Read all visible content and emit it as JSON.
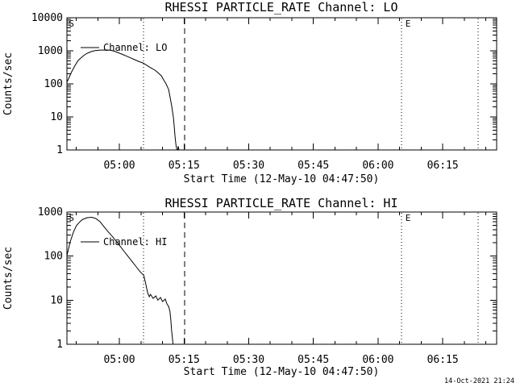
{
  "figure": {
    "background": "#ffffff",
    "foreground": "#000000",
    "timestamp": "14-Oct-2021 21:24"
  },
  "chart_data": [
    {
      "type": "line",
      "title": "RHESSI PARTICLE_RATE Channel: LO",
      "xlabel": "Start Time (12-May-10 04:47:50)",
      "ylabel": "Counts/sec",
      "legend": [
        "Channel: LO"
      ],
      "legend_position": "upper-left",
      "grid": false,
      "x_axis": {
        "start_time": "04:47:50",
        "duration_min": 99.67,
        "major_ticks": [
          {
            "t": 12.1667,
            "label": "05:00"
          },
          {
            "t": 27.1667,
            "label": "05:15"
          },
          {
            "t": 42.1667,
            "label": "05:30"
          },
          {
            "t": 57.1667,
            "label": "05:45"
          },
          {
            "t": 72.1667,
            "label": "06:00"
          },
          {
            "t": 87.1667,
            "label": "06:15"
          }
        ],
        "minor_tick_start": 2.1667,
        "minor_tick_step_min": 5
      },
      "y_axis": {
        "scale": "log",
        "min": 1,
        "max": 10000,
        "tick_labels": [
          "10000",
          "1000",
          "100",
          "10",
          "1"
        ]
      },
      "event_markers": [
        {
          "style": "dotted",
          "t": 17.8,
          "time": "05:05:38"
        },
        {
          "style": "dashed",
          "t": 27.3,
          "time": "05:15:08"
        },
        {
          "style": "dotted",
          "t": 77.6,
          "time": "06:05:26"
        },
        {
          "style": "dotted",
          "t": 95.4,
          "time": "06:23:14"
        }
      ],
      "flags": [
        {
          "label": "S",
          "t": 0.25
        },
        {
          "label": "E",
          "t": 78.3
        }
      ],
      "series": [
        {
          "name": "Channel: LO",
          "points": [
            [
              0,
              112
            ],
            [
              0.6,
              166
            ],
            [
              1.1,
              232
            ],
            [
              1.9,
              363
            ],
            [
              2.6,
              510
            ],
            [
              3.4,
              635
            ],
            [
              4.1,
              755
            ],
            [
              4.9,
              865
            ],
            [
              5.6,
              940
            ],
            [
              6.5,
              1010
            ],
            [
              7.5,
              1045
            ],
            [
              8.8,
              1055
            ],
            [
              10.1,
              1040
            ],
            [
              11.0,
              970
            ],
            [
              12.0,
              865
            ],
            [
              12.9,
              775
            ],
            [
              13.8,
              690
            ],
            [
              14.8,
              610
            ],
            [
              15.7,
              540
            ],
            [
              16.6,
              480
            ],
            [
              17.6,
              430
            ],
            [
              18.5,
              365
            ],
            [
              19.4,
              310
            ],
            [
              20.4,
              260
            ],
            [
              21.1,
              220
            ],
            [
              21.9,
              175
            ],
            [
              22.4,
              135
            ],
            [
              23.0,
              100
            ],
            [
              23.6,
              67
            ],
            [
              23.9,
              41
            ],
            [
              24.3,
              22
            ],
            [
              24.7,
              9.5
            ],
            [
              24.9,
              4.8
            ],
            [
              25.1,
              2.4
            ],
            [
              25.3,
              1.4
            ],
            [
              25.5,
              1.0
            ],
            [
              25.7,
              1.0
            ],
            [
              25.8,
              1.3
            ],
            [
              26.0,
              1.0
            ]
          ]
        }
      ]
    },
    {
      "type": "line",
      "title": "RHESSI PARTICLE_RATE Channel: HI",
      "xlabel": "Start Time (12-May-10 04:47:50)",
      "ylabel": "Counts/sec",
      "legend": [
        "Channel: HI"
      ],
      "legend_position": "upper-left",
      "grid": false,
      "x_axis": {
        "start_time": "04:47:50",
        "duration_min": 99.67,
        "major_ticks": [
          {
            "t": 12.1667,
            "label": "05:00"
          },
          {
            "t": 27.1667,
            "label": "05:15"
          },
          {
            "t": 42.1667,
            "label": "05:30"
          },
          {
            "t": 57.1667,
            "label": "05:45"
          },
          {
            "t": 72.1667,
            "label": "06:00"
          },
          {
            "t": 87.1667,
            "label": "06:15"
          }
        ],
        "minor_tick_start": 2.1667,
        "minor_tick_step_min": 5
      },
      "y_axis": {
        "scale": "log",
        "min": 1,
        "max": 1000,
        "tick_labels": [
          "1000",
          "100",
          "10",
          "1"
        ]
      },
      "event_markers": [
        {
          "style": "dotted",
          "t": 17.8,
          "time": "05:05:38"
        },
        {
          "style": "dashed",
          "t": 27.3,
          "time": "05:15:08"
        },
        {
          "style": "dotted",
          "t": 77.6,
          "time": "06:05:26"
        },
        {
          "style": "dotted",
          "t": 95.4,
          "time": "06:23:14"
        }
      ],
      "flags": [
        {
          "label": "S",
          "t": 0.25
        },
        {
          "label": "E",
          "t": 78.3
        }
      ],
      "series": [
        {
          "name": "Channel: HI",
          "points": [
            [
              0,
              103
            ],
            [
              0.75,
              210
            ],
            [
              1.5,
              348
            ],
            [
              2.2,
              490
            ],
            [
              3.0,
              600
            ],
            [
              3.7,
              685
            ],
            [
              4.7,
              745
            ],
            [
              5.8,
              760
            ],
            [
              6.7,
              715
            ],
            [
              7.7,
              600
            ],
            [
              8.6,
              465
            ],
            [
              9.5,
              363
            ],
            [
              10.5,
              282
            ],
            [
              11.4,
              219
            ],
            [
              12.3,
              170
            ],
            [
              13.3,
              127
            ],
            [
              14.2,
              98
            ],
            [
              15.1,
              76
            ],
            [
              16.1,
              57
            ],
            [
              17.0,
              44
            ],
            [
              17.8,
              37
            ],
            [
              18.3,
              23
            ],
            [
              18.7,
              15
            ],
            [
              19.1,
              12
            ],
            [
              19.4,
              13.5
            ],
            [
              20.0,
              11
            ],
            [
              20.6,
              12.5
            ],
            [
              21.1,
              10
            ],
            [
              21.7,
              11.5
            ],
            [
              22.2,
              9.3
            ],
            [
              22.8,
              10.6
            ],
            [
              23.2,
              8.2
            ],
            [
              23.6,
              7.2
            ],
            [
              23.9,
              5.5
            ],
            [
              24.1,
              3.5
            ],
            [
              24.3,
              2.0
            ],
            [
              24.5,
              1.3
            ],
            [
              24.6,
              1.0
            ]
          ]
        }
      ]
    }
  ]
}
